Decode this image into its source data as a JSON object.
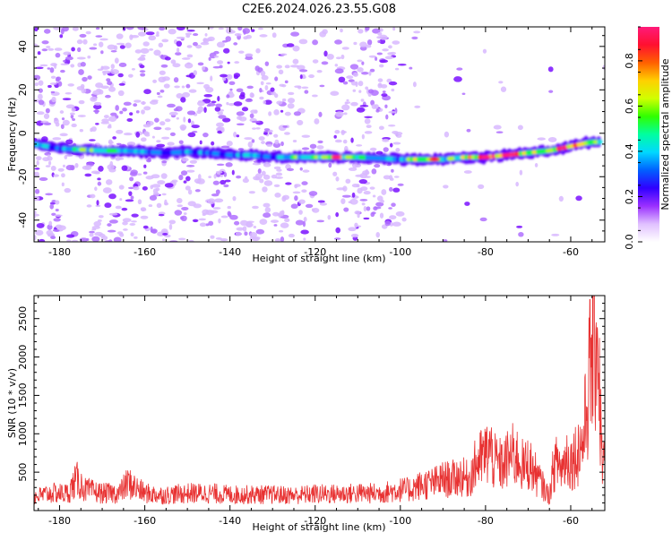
{
  "title": "C2E6.2024.026.23.55.G08",
  "colors": {
    "snr_line": "#e83232",
    "ridge": [
      "#5b00ff",
      "#2e16ff",
      "#00c8ff",
      "#00ff55",
      "#f5f500",
      "#ff9a00",
      "#ff1a1a"
    ],
    "colormap": [
      "#ffffff",
      "#c08aff",
      "#7a00ff",
      "#2000ff",
      "#0090ff",
      "#00e0e0",
      "#00ff40",
      "#b0ff00",
      "#ffe000",
      "#ff7a00",
      "#ff1010",
      "#ff1a7a"
    ]
  },
  "chart_data": [
    {
      "type": "heatmap",
      "title": "C2E6.2024.026.23.55.G08",
      "xlabel": "Height of straight line (km)",
      "ylabel": "Frequency (Hz)",
      "xlim": [
        -186,
        -52
      ],
      "ylim": [
        -50,
        49
      ],
      "x_ticks": [
        -180,
        -160,
        -140,
        -120,
        -100,
        -80,
        -60
      ],
      "y_ticks": [
        -40,
        -20,
        0,
        20,
        40
      ],
      "ridge": {
        "x": [
          -186,
          -180,
          -175,
          -170,
          -165,
          -160,
          -155,
          -150,
          -145,
          -140,
          -135,
          -130,
          -125,
          -120,
          -115,
          -110,
          -105,
          -100,
          -95,
          -90,
          -85,
          -80,
          -75,
          -70,
          -65,
          -60,
          -55,
          -53
        ],
        "y": [
          -5,
          -7,
          -7.5,
          -8,
          -8,
          -8.5,
          -9,
          -8.5,
          -9,
          -10,
          -10,
          -11,
          -11,
          -11,
          -11,
          -11,
          -11.5,
          -12,
          -12,
          -12,
          -11,
          -11,
          -10,
          -9,
          -8,
          -6,
          -4,
          -4
        ],
        "amplitude": [
          0.4,
          0.35,
          0.55,
          0.5,
          0.5,
          0.4,
          0.3,
          0.35,
          0.3,
          0.3,
          0.35,
          0.3,
          0.5,
          0.5,
          0.8,
          0.5,
          0.45,
          0.4,
          0.7,
          0.5,
          0.6,
          0.9,
          0.85,
          0.75,
          0.7,
          0.9,
          0.65,
          0.55
        ]
      },
      "colorbar": {
        "label": "Normalized spectral amplitude",
        "range": [
          0.0,
          0.95
        ],
        "ticks": [
          "0.0",
          "0.2",
          "0.4",
          "0.6",
          "0.8"
        ]
      }
    },
    {
      "type": "line",
      "xlabel": "Height of straight line (km)",
      "ylabel": "SNR (10 * v/v)",
      "xlim": [
        -186,
        -52
      ],
      "ylim": [
        0,
        2800
      ],
      "x_ticks": [
        -180,
        -160,
        -140,
        -120,
        -100,
        -80,
        -60
      ],
      "y_ticks": [
        500,
        1000,
        1500,
        2000,
        2500
      ],
      "series": [
        {
          "x": [
            -186,
            -182,
            -178,
            -176,
            -174,
            -170,
            -166,
            -164,
            -160,
            -156,
            -150,
            -145,
            -140,
            -135,
            -130,
            -125,
            -120,
            -115,
            -110,
            -105,
            -100,
            -98,
            -96,
            -94,
            -92,
            -90,
            -88,
            -86,
            -84,
            -82,
            -80,
            -79,
            -78,
            -76,
            -74,
            -72,
            -71,
            -70,
            -68,
            -66,
            -65,
            -64,
            -63,
            -62,
            -61,
            -60,
            -58,
            -57,
            -56,
            -55,
            -54,
            -53.5,
            -53,
            -52.5
          ],
          "y": [
            200,
            250,
            250,
            450,
            300,
            250,
            250,
            400,
            250,
            220,
            250,
            250,
            230,
            230,
            230,
            220,
            240,
            240,
            250,
            250,
            300,
            300,
            350,
            380,
            400,
            450,
            450,
            500,
            450,
            700,
            800,
            900,
            700,
            650,
            800,
            750,
            600,
            700,
            500,
            300,
            200,
            650,
            700,
            600,
            800,
            700,
            900,
            1000,
            1700,
            2300,
            2700,
            2400,
            1200,
            700
          ]
        }
      ]
    }
  ]
}
